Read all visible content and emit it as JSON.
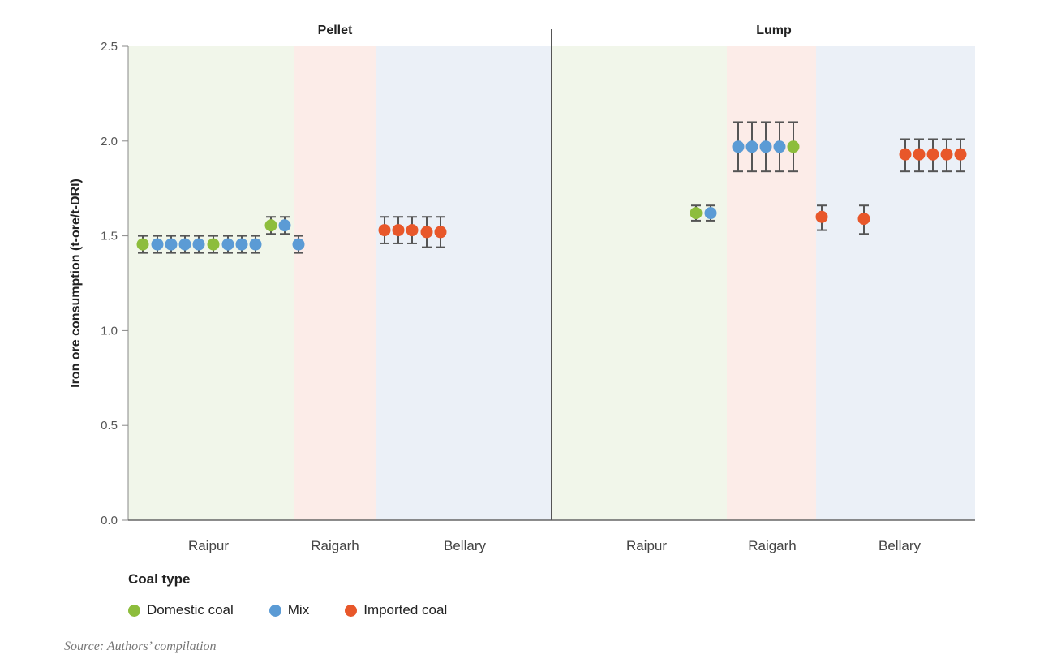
{
  "chart_data": {
    "type": "scatter",
    "ylabel": "Iron ore consumption (t-ore/t-DRI)",
    "ylim": [
      0,
      2.5
    ],
    "yticks": [
      "0.0",
      "0.5",
      "1.0",
      "1.5",
      "2.0",
      "2.5"
    ],
    "legend_title": "Coal type",
    "legend_placement": "bottom-left",
    "series_colors": {
      "Domestic coal": "#8dbd3c",
      "Mix": "#5b9bd5",
      "Imported coal": "#e8572a"
    },
    "region_colors": {
      "Raipur": "#f1f6ea",
      "Raigarh": "#fcece8",
      "Bellary": "#ebf0f7"
    },
    "legend": [
      "Domestic coal",
      "Mix",
      "Imported coal"
    ],
    "facets": [
      {
        "title": "Pellet",
        "regions": [
          "Raipur",
          "Raigarh",
          "Bellary"
        ],
        "points": [
          {
            "region": "Raipur",
            "coal": "Domestic coal",
            "value": 1.455,
            "low": 1.41,
            "high": 1.5
          },
          {
            "region": "Raipur",
            "coal": "Mix",
            "value": 1.455,
            "low": 1.41,
            "high": 1.5
          },
          {
            "region": "Raipur",
            "coal": "Mix",
            "value": 1.455,
            "low": 1.41,
            "high": 1.5
          },
          {
            "region": "Raipur",
            "coal": "Mix",
            "value": 1.455,
            "low": 1.41,
            "high": 1.5
          },
          {
            "region": "Raipur",
            "coal": "Mix",
            "value": 1.455,
            "low": 1.41,
            "high": 1.5
          },
          {
            "region": "Raipur",
            "coal": "Domestic coal",
            "value": 1.455,
            "low": 1.41,
            "high": 1.5
          },
          {
            "region": "Raipur",
            "coal": "Mix",
            "value": 1.455,
            "low": 1.41,
            "high": 1.5
          },
          {
            "region": "Raipur",
            "coal": "Mix",
            "value": 1.455,
            "low": 1.41,
            "high": 1.5
          },
          {
            "region": "Raipur",
            "coal": "Mix",
            "value": 1.455,
            "low": 1.41,
            "high": 1.5
          },
          {
            "region": "Raipur",
            "coal": "Domestic coal",
            "value": 1.555,
            "low": 1.51,
            "high": 1.6
          },
          {
            "region": "Raipur",
            "coal": "Mix",
            "value": 1.555,
            "low": 1.51,
            "high": 1.6
          },
          {
            "region": "Raigarh",
            "coal": "Mix",
            "value": 1.455,
            "low": 1.41,
            "high": 1.5
          },
          {
            "region": "Bellary",
            "coal": "Imported coal",
            "value": 1.53,
            "low": 1.46,
            "high": 1.6
          },
          {
            "region": "Bellary",
            "coal": "Imported coal",
            "value": 1.53,
            "low": 1.46,
            "high": 1.6
          },
          {
            "region": "Bellary",
            "coal": "Imported coal",
            "value": 1.53,
            "low": 1.46,
            "high": 1.6
          },
          {
            "region": "Bellary",
            "coal": "Imported coal",
            "value": 1.52,
            "low": 1.44,
            "high": 1.6
          },
          {
            "region": "Bellary",
            "coal": "Imported coal",
            "value": 1.52,
            "low": 1.44,
            "high": 1.6
          }
        ]
      },
      {
        "title": "Lump",
        "regions": [
          "Raipur",
          "Raigarh",
          "Bellary"
        ],
        "points": [
          {
            "region": "Raipur",
            "coal": "Domestic coal",
            "value": 1.62,
            "low": 1.58,
            "high": 1.66
          },
          {
            "region": "Raipur",
            "coal": "Mix",
            "value": 1.62,
            "low": 1.58,
            "high": 1.66
          },
          {
            "region": "Raigarh",
            "coal": "Mix",
            "value": 1.97,
            "low": 1.84,
            "high": 2.1
          },
          {
            "region": "Raigarh",
            "coal": "Mix",
            "value": 1.97,
            "low": 1.84,
            "high": 2.1
          },
          {
            "region": "Raigarh",
            "coal": "Mix",
            "value": 1.97,
            "low": 1.84,
            "high": 2.1
          },
          {
            "region": "Raigarh",
            "coal": "Mix",
            "value": 1.97,
            "low": 1.84,
            "high": 2.1
          },
          {
            "region": "Raigarh",
            "coal": "Domestic coal",
            "value": 1.97,
            "low": 1.84,
            "high": 2.1
          },
          {
            "region": "Raigarh",
            "coal": "Imported coal",
            "value": 1.6,
            "low": 1.53,
            "high": 1.66
          },
          {
            "region": "Bellary",
            "coal": "Imported coal",
            "value": 1.59,
            "low": 1.51,
            "high": 1.66
          },
          {
            "region": "Bellary",
            "coal": "Imported coal",
            "value": 1.93,
            "low": 1.84,
            "high": 2.01
          },
          {
            "region": "Bellary",
            "coal": "Imported coal",
            "value": 1.93,
            "low": 1.84,
            "high": 2.01
          },
          {
            "region": "Bellary",
            "coal": "Imported coal",
            "value": 1.93,
            "low": 1.84,
            "high": 2.01
          },
          {
            "region": "Bellary",
            "coal": "Imported coal",
            "value": 1.93,
            "low": 1.84,
            "high": 2.01
          },
          {
            "region": "Bellary",
            "coal": "Imported coal",
            "value": 1.93,
            "low": 1.84,
            "high": 2.01
          }
        ]
      }
    ]
  },
  "source": "Source: Authors’ compilation"
}
